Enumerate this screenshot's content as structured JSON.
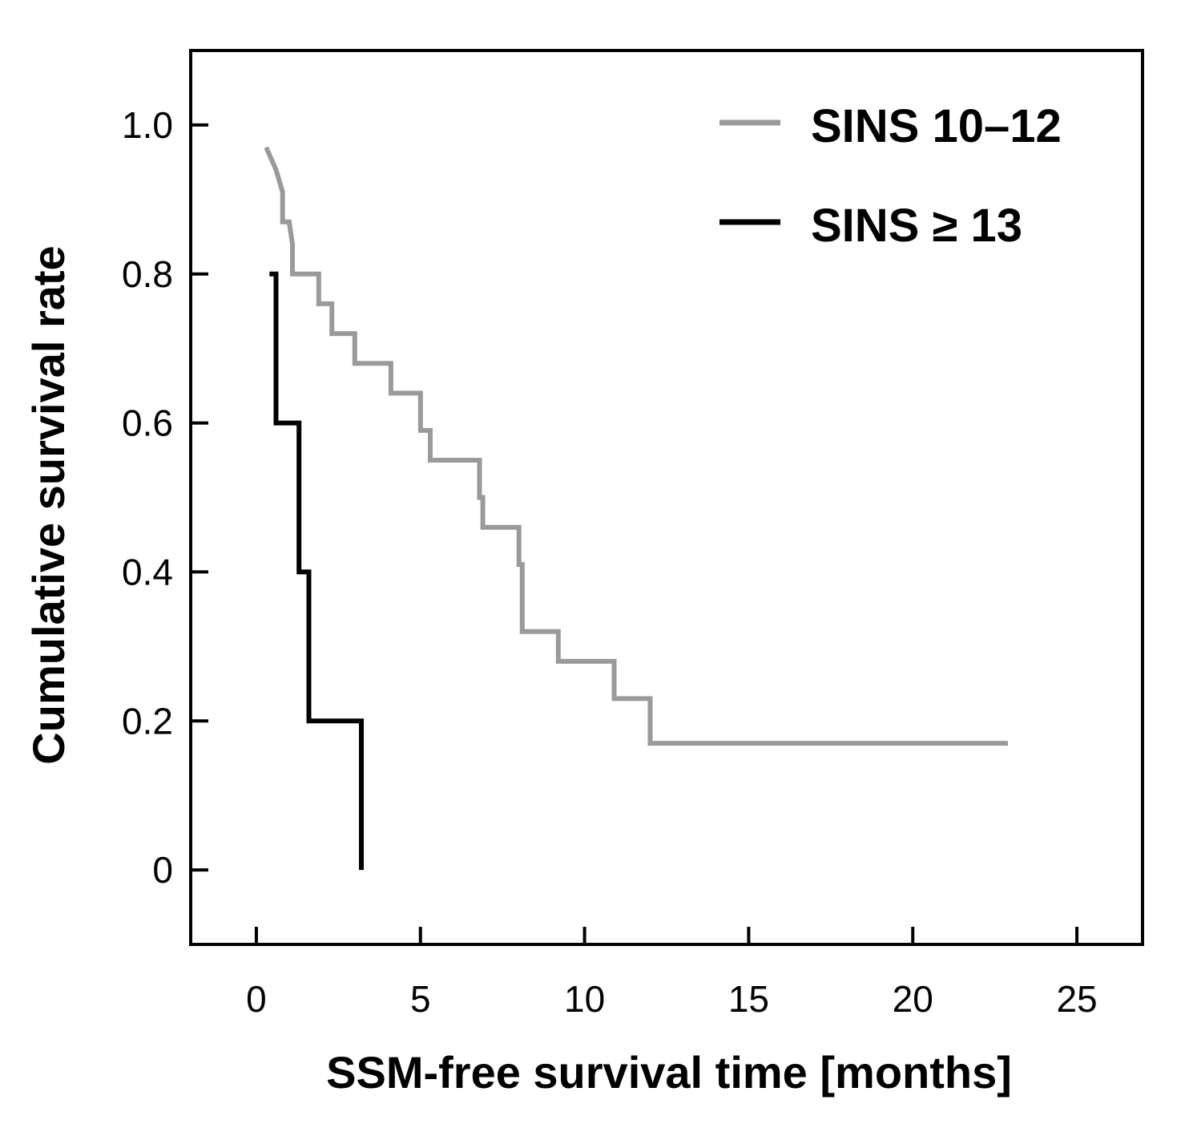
{
  "chart_data": {
    "type": "line",
    "subtype": "kaplan-meier step",
    "xlabel": "SSM-free survival time [months]",
    "ylabel": "Cumulative survival rate",
    "xlim": [
      -2,
      27
    ],
    "ylim": [
      -0.1,
      1.1
    ],
    "x_ticks": [
      0,
      5,
      10,
      15,
      20,
      25
    ],
    "x_tick_labels": [
      "0",
      "5",
      "10",
      "15",
      "20",
      "25"
    ],
    "y_ticks": [
      0,
      0.2,
      0.4,
      0.6,
      0.8,
      1.0
    ],
    "y_tick_labels": [
      "0",
      "0.2",
      "0.4",
      "0.6",
      "0.8",
      "1.0"
    ],
    "grid": false,
    "legend_position": "top-right",
    "series": [
      {
        "name": "SINS 10–12",
        "color": "#9a9a9a",
        "points": [
          [
            0.3,
            0.97
          ],
          [
            0.6,
            0.94
          ],
          [
            0.8,
            0.91
          ],
          [
            0.8,
            0.87
          ],
          [
            1.0,
            0.87
          ],
          [
            1.1,
            0.84
          ],
          [
            1.1,
            0.8
          ],
          [
            1.5,
            0.8
          ],
          [
            1.9,
            0.8
          ],
          [
            1.9,
            0.76
          ],
          [
            2.3,
            0.76
          ],
          [
            2.3,
            0.72
          ],
          [
            3.0,
            0.72
          ],
          [
            3.0,
            0.68
          ],
          [
            4.1,
            0.68
          ],
          [
            4.1,
            0.64
          ],
          [
            5.0,
            0.64
          ],
          [
            5.0,
            0.59
          ],
          [
            5.3,
            0.59
          ],
          [
            5.3,
            0.55
          ],
          [
            6.8,
            0.55
          ],
          [
            6.8,
            0.5
          ],
          [
            6.9,
            0.5
          ],
          [
            6.9,
            0.46
          ],
          [
            8.0,
            0.46
          ],
          [
            8.0,
            0.41
          ],
          [
            8.1,
            0.41
          ],
          [
            8.1,
            0.32
          ],
          [
            9.2,
            0.32
          ],
          [
            9.2,
            0.28
          ],
          [
            10.9,
            0.28
          ],
          [
            10.9,
            0.23
          ],
          [
            12.0,
            0.23
          ],
          [
            12.0,
            0.17
          ],
          [
            22.9,
            0.17
          ]
        ]
      },
      {
        "name": "SINS ≥ 13",
        "color": "#000000",
        "points": [
          [
            0.4,
            0.8
          ],
          [
            0.6,
            0.8
          ],
          [
            0.6,
            0.6
          ],
          [
            1.3,
            0.6
          ],
          [
            1.3,
            0.4
          ],
          [
            1.6,
            0.4
          ],
          [
            1.6,
            0.2
          ],
          [
            3.2,
            0.2
          ],
          [
            3.2,
            0.0
          ]
        ]
      }
    ]
  }
}
